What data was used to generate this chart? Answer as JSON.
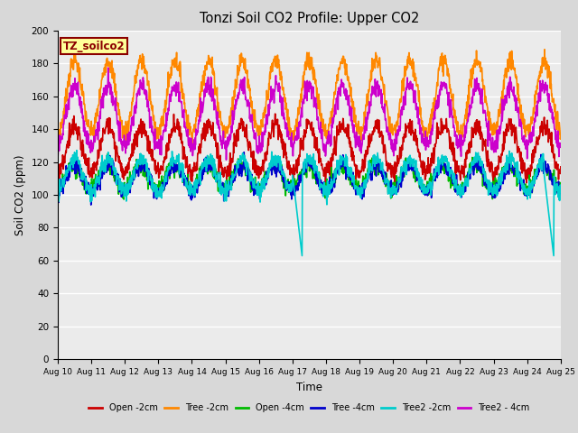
{
  "title": "Tonzi Soil CO2 Profile: Upper CO2",
  "xlabel": "Time",
  "ylabel": "Soil CO2 (ppm)",
  "ylim": [
    0,
    200
  ],
  "yticks": [
    0,
    20,
    40,
    60,
    80,
    100,
    120,
    140,
    160,
    180,
    200
  ],
  "background_color": "#d8d8d8",
  "plot_bg_color": "#ebebeb",
  "legend_label": "TZ_soilco2",
  "legend_label_color": "#8b0000",
  "legend_label_bg": "#ffff99",
  "series_order": [
    "Open -2cm",
    "Tree -2cm",
    "Open -4cm",
    "Tree -4cm",
    "Tree2 -2cm",
    "Tree2 - 4cm"
  ],
  "series": {
    "Open -2cm": {
      "color": "#cc0000",
      "lw": 1.2
    },
    "Tree -2cm": {
      "color": "#ff8800",
      "lw": 1.2
    },
    "Open -4cm": {
      "color": "#00bb00",
      "lw": 1.2
    },
    "Tree -4cm": {
      "color": "#0000cc",
      "lw": 1.2
    },
    "Tree2 -2cm": {
      "color": "#00cccc",
      "lw": 1.2
    },
    "Tree2 - 4cm": {
      "color": "#cc00cc",
      "lw": 1.2
    }
  },
  "n_days": 15,
  "pts_per_day": 96,
  "start_day": 10,
  "figsize": [
    6.4,
    4.8
  ],
  "dpi": 100
}
